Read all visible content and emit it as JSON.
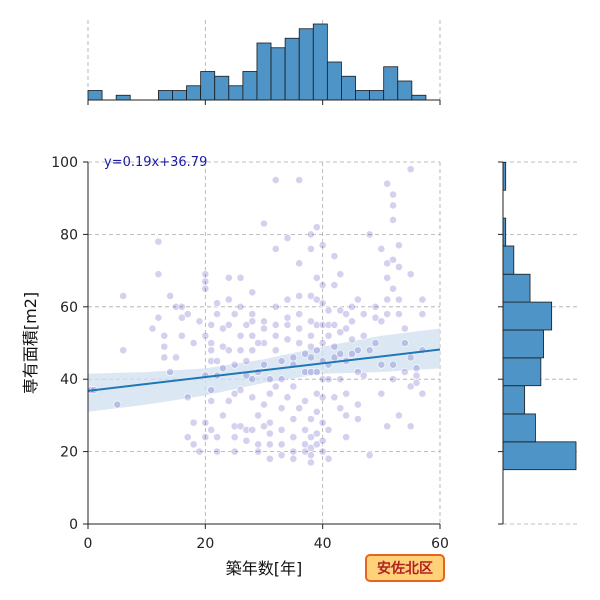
{
  "chart_data": {
    "type": "scatter",
    "xlabel": "築年数[年]",
    "ylabel": "専有面積[m2]",
    "xlim": [
      0,
      60
    ],
    "ylim": [
      0,
      100
    ],
    "xticks": [
      0,
      20,
      40,
      60
    ],
    "yticks": [
      0,
      20,
      40,
      60,
      80,
      100
    ],
    "grid": true,
    "regression": {
      "label": "y=0.19x+36.79",
      "slope": 0.19,
      "intercept": 36.79
    },
    "badge": "安佐北区",
    "colors": {
      "points": "#3d2fb8",
      "regression": "#1f77b4",
      "band": "#cfe0f0",
      "hist": "#4f94c6",
      "badge_bg": "#ffd27a",
      "badge_border": "#e8641e"
    },
    "points": [
      [
        0.5,
        37
      ],
      [
        1,
        37
      ],
      [
        5,
        33
      ],
      [
        6,
        63
      ],
      [
        6,
        48
      ],
      [
        11,
        54
      ],
      [
        12,
        78
      ],
      [
        12,
        69
      ],
      [
        12,
        57
      ],
      [
        13,
        52
      ],
      [
        13,
        49
      ],
      [
        13,
        46
      ],
      [
        14,
        63
      ],
      [
        15,
        60
      ],
      [
        16,
        60
      ],
      [
        16,
        57
      ],
      [
        17,
        58
      ],
      [
        17,
        35
      ],
      [
        18,
        28
      ],
      [
        17,
        24
      ],
      [
        18,
        22
      ],
      [
        19,
        20
      ],
      [
        20,
        69
      ],
      [
        20,
        67
      ],
      [
        20,
        65
      ],
      [
        19,
        56
      ],
      [
        20,
        52
      ],
      [
        21,
        55
      ],
      [
        21,
        50
      ],
      [
        21,
        48
      ],
      [
        21,
        45
      ],
      [
        20,
        41
      ],
      [
        21,
        37
      ],
      [
        21,
        34
      ],
      [
        20,
        28
      ],
      [
        21,
        26
      ],
      [
        20,
        24
      ],
      [
        22,
        61
      ],
      [
        22,
        58
      ],
      [
        23,
        54
      ],
      [
        23,
        49
      ],
      [
        22,
        45
      ],
      [
        22,
        41
      ],
      [
        23,
        30
      ],
      [
        22,
        24
      ],
      [
        22,
        20
      ],
      [
        24,
        68
      ],
      [
        24,
        62
      ],
      [
        24,
        55
      ],
      [
        24,
        48
      ],
      [
        25,
        44
      ],
      [
        25,
        36
      ],
      [
        24,
        34
      ],
      [
        25,
        27
      ],
      [
        25,
        24
      ],
      [
        25,
        20
      ],
      [
        26,
        68
      ],
      [
        26,
        60
      ],
      [
        26,
        52
      ],
      [
        26,
        48
      ],
      [
        27,
        45
      ],
      [
        27,
        41
      ],
      [
        26,
        27
      ],
      [
        27,
        26
      ],
      [
        27,
        23
      ],
      [
        28,
        64
      ],
      [
        28,
        58
      ],
      [
        28,
        56
      ],
      [
        28,
        52
      ],
      [
        28,
        48
      ],
      [
        29,
        42
      ],
      [
        28,
        40
      ],
      [
        28,
        35
      ],
      [
        29,
        30
      ],
      [
        28,
        26
      ],
      [
        29,
        22
      ],
      [
        29,
        20
      ],
      [
        30,
        83
      ],
      [
        30,
        56
      ],
      [
        30,
        54
      ],
      [
        30,
        50
      ],
      [
        30,
        44
      ],
      [
        31,
        40
      ],
      [
        31,
        36
      ],
      [
        31,
        28
      ],
      [
        31,
        25
      ],
      [
        31,
        22
      ],
      [
        31,
        18
      ],
      [
        32,
        95
      ],
      [
        32,
        76
      ],
      [
        32,
        60
      ],
      [
        32,
        55
      ],
      [
        32,
        52
      ],
      [
        32,
        48
      ],
      [
        33,
        45
      ],
      [
        33,
        40
      ],
      [
        33,
        32
      ],
      [
        33,
        26
      ],
      [
        33,
        22
      ],
      [
        33,
        19
      ],
      [
        34,
        79
      ],
      [
        34,
        62
      ],
      [
        34,
        57
      ],
      [
        34,
        55
      ],
      [
        34,
        51
      ],
      [
        35,
        46
      ],
      [
        35,
        44
      ],
      [
        35,
        38
      ],
      [
        35,
        24
      ],
      [
        35,
        20
      ],
      [
        35,
        18
      ],
      [
        36,
        95
      ],
      [
        36,
        72
      ],
      [
        36,
        63
      ],
      [
        36,
        58
      ],
      [
        36,
        54
      ],
      [
        36,
        50
      ],
      [
        37,
        47
      ],
      [
        37,
        42
      ],
      [
        37,
        34
      ],
      [
        37,
        26
      ],
      [
        37,
        22
      ],
      [
        37,
        20
      ],
      [
        38,
        80
      ],
      [
        38,
        76
      ],
      [
        38,
        63
      ],
      [
        38,
        56
      ],
      [
        38,
        52
      ],
      [
        38,
        49
      ],
      [
        38,
        46
      ],
      [
        38,
        42
      ],
      [
        38,
        29
      ],
      [
        38,
        24
      ],
      [
        38,
        21
      ],
      [
        38,
        19
      ],
      [
        38,
        17
      ],
      [
        39,
        82
      ],
      [
        39,
        68
      ],
      [
        39,
        62
      ],
      [
        39,
        55
      ],
      [
        39,
        48
      ],
      [
        39,
        42
      ],
      [
        39,
        36
      ],
      [
        39,
        31
      ],
      [
        39,
        25
      ],
      [
        39,
        22
      ],
      [
        40,
        77
      ],
      [
        40,
        66
      ],
      [
        40,
        61
      ],
      [
        40,
        55
      ],
      [
        40,
        50
      ],
      [
        40,
        45
      ],
      [
        40,
        40
      ],
      [
        40,
        35
      ],
      [
        40,
        28
      ],
      [
        40,
        23
      ],
      [
        40,
        20
      ],
      [
        41,
        59
      ],
      [
        41,
        55
      ],
      [
        41,
        52
      ],
      [
        41,
        44
      ],
      [
        41,
        40
      ],
      [
        41,
        26
      ],
      [
        41,
        18
      ],
      [
        42,
        74
      ],
      [
        42,
        66
      ],
      [
        42,
        55
      ],
      [
        42,
        49
      ],
      [
        42,
        46
      ],
      [
        43,
        69
      ],
      [
        43,
        59
      ],
      [
        43,
        53
      ],
      [
        43,
        47
      ],
      [
        43,
        40
      ],
      [
        43,
        32
      ],
      [
        44,
        58
      ],
      [
        44,
        54
      ],
      [
        44,
        45
      ],
      [
        44,
        30
      ],
      [
        45,
        60
      ],
      [
        45,
        56
      ],
      [
        45,
        51
      ],
      [
        45,
        47
      ],
      [
        46,
        62
      ],
      [
        46,
        48
      ],
      [
        46,
        42
      ],
      [
        46,
        29
      ],
      [
        47,
        58
      ],
      [
        47,
        52
      ],
      [
        48,
        80
      ],
      [
        48,
        48
      ],
      [
        48,
        19
      ],
      [
        49,
        57
      ],
      [
        49,
        50
      ],
      [
        50,
        76
      ],
      [
        50,
        56
      ],
      [
        50,
        44
      ],
      [
        50,
        36
      ],
      [
        51,
        94
      ],
      [
        51,
        72
      ],
      [
        51,
        68
      ],
      [
        51,
        62
      ],
      [
        51,
        58
      ],
      [
        51,
        27
      ],
      [
        52,
        91
      ],
      [
        52,
        88
      ],
      [
        52,
        84
      ],
      [
        52,
        73
      ],
      [
        52,
        65
      ],
      [
        52,
        44
      ],
      [
        52,
        40
      ],
      [
        53,
        71
      ],
      [
        53,
        58
      ],
      [
        54,
        54
      ],
      [
        54,
        50
      ],
      [
        55,
        69
      ],
      [
        55,
        46
      ],
      [
        55,
        38
      ],
      [
        55,
        27
      ],
      [
        56,
        41
      ],
      [
        56,
        39
      ],
      [
        57,
        62
      ],
      [
        57,
        58
      ],
      [
        57,
        48
      ],
      [
        57,
        36
      ],
      [
        55,
        98
      ],
      [
        53,
        77
      ],
      [
        53,
        62
      ],
      [
        54,
        42
      ],
      [
        53,
        30
      ],
      [
        56,
        43
      ],
      [
        49,
        60
      ],
      [
        47,
        41
      ],
      [
        44,
        36
      ],
      [
        46,
        33
      ],
      [
        44,
        24
      ],
      [
        42,
        35
      ],
      [
        34,
        35
      ],
      [
        36,
        32
      ],
      [
        35,
        29
      ],
      [
        30,
        27
      ],
      [
        29,
        50
      ],
      [
        27,
        55
      ],
      [
        25,
        58
      ],
      [
        23,
        43
      ],
      [
        18,
        50
      ],
      [
        15,
        46
      ],
      [
        16,
        52
      ],
      [
        14,
        42
      ],
      [
        30,
        33
      ],
      [
        32,
        38
      ],
      [
        26,
        37
      ]
    ],
    "top_histogram": {
      "bin_edges": [
        0,
        2.4,
        4.8,
        7.2,
        9.6,
        12,
        14.4,
        16.8,
        19.2,
        21.6,
        24,
        26.4,
        28.8,
        31.2,
        33.6,
        36,
        38.4,
        40.8,
        43.2,
        45.6,
        48,
        50.4,
        52.8,
        55.2,
        57.6
      ],
      "counts": [
        2,
        0,
        1,
        0,
        0,
        2,
        2,
        3,
        6,
        5,
        3,
        6,
        12,
        11,
        13,
        15,
        16,
        8,
        5,
        2,
        2,
        7,
        4,
        1
      ]
    },
    "right_histogram": {
      "bin_edges": [
        15,
        22.7,
        30.4,
        38.2,
        45.9,
        53.6,
        61.3,
        69,
        76.8,
        84.5,
        92.2,
        99.9
      ],
      "counts": [
        27,
        12,
        8,
        14,
        15,
        18,
        10,
        4,
        1,
        0,
        1
      ]
    }
  }
}
